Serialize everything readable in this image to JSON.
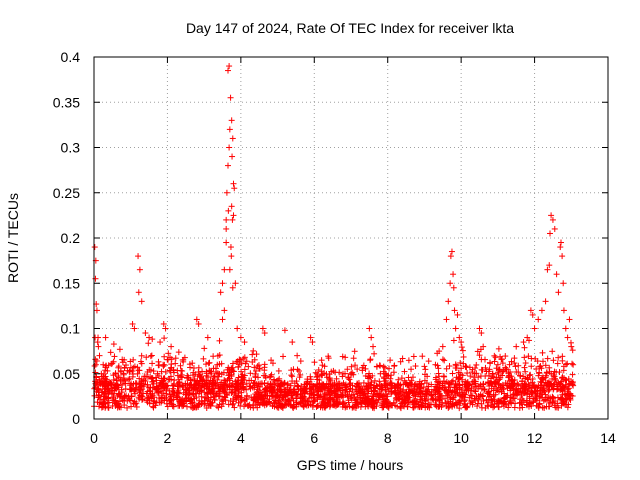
{
  "chart_data": {
    "type": "scatter",
    "title": "Day 147 of 2024, Rate Of TEC Index for receiver lkta",
    "xlabel": "GPS time / hours",
    "ylabel": "ROTI / TECUs",
    "xlim": [
      0,
      14
    ],
    "ylim": [
      0,
      0.4
    ],
    "xticks": [
      0,
      2,
      4,
      6,
      8,
      10,
      12,
      14
    ],
    "xtick_labels": [
      "0",
      "2",
      "4",
      "6",
      "8",
      "10",
      "12",
      "14"
    ],
    "yticks": [
      0,
      0.05,
      0.1,
      0.15,
      0.2,
      0.25,
      0.3,
      0.35,
      0.4
    ],
    "ytick_labels": [
      "0",
      "0.05",
      "0.1",
      "0.15",
      "0.2",
      "0.25",
      "0.3",
      "0.35",
      "0.4"
    ],
    "grid": true,
    "marker": "+",
    "color": "#ff0000",
    "series": [
      {
        "name": "ROTI",
        "points": [
          [
            0.02,
            0.19
          ],
          [
            0.05,
            0.175
          ],
          [
            0.04,
            0.155
          ],
          [
            0.06,
            0.127
          ],
          [
            0.08,
            0.12
          ],
          [
            0.03,
            0.09
          ],
          [
            0.1,
            0.085
          ],
          [
            0.12,
            0.08
          ],
          [
            0.05,
            0.06
          ],
          [
            0.15,
            0.07
          ],
          [
            0.2,
            0.05
          ],
          [
            0.25,
            0.06
          ],
          [
            0.3,
            0.045
          ],
          [
            1.2,
            0.18
          ],
          [
            1.25,
            0.165
          ],
          [
            1.22,
            0.14
          ],
          [
            1.3,
            0.13
          ],
          [
            1.05,
            0.105
          ],
          [
            1.1,
            0.1
          ],
          [
            1.4,
            0.095
          ],
          [
            1.5,
            0.09
          ],
          [
            1.8,
            0.085
          ],
          [
            1.9,
            0.105
          ],
          [
            1.95,
            0.1
          ],
          [
            2.1,
            0.08
          ],
          [
            2.8,
            0.11
          ],
          [
            2.85,
            0.105
          ],
          [
            3.1,
            0.09
          ],
          [
            3.45,
            0.14
          ],
          [
            3.5,
            0.15
          ],
          [
            3.55,
            0.165
          ],
          [
            3.6,
            0.195
          ],
          [
            3.6,
            0.22
          ],
          [
            3.62,
            0.25
          ],
          [
            3.65,
            0.28
          ],
          [
            3.68,
            0.3
          ],
          [
            3.7,
            0.32
          ],
          [
            3.72,
            0.355
          ],
          [
            3.65,
            0.385
          ],
          [
            3.68,
            0.39
          ],
          [
            3.75,
            0.33
          ],
          [
            3.78,
            0.31
          ],
          [
            3.76,
            0.29
          ],
          [
            3.8,
            0.26
          ],
          [
            3.82,
            0.255
          ],
          [
            3.75,
            0.235
          ],
          [
            3.77,
            0.22
          ],
          [
            3.8,
            0.225
          ],
          [
            3.73,
            0.19
          ],
          [
            3.74,
            0.18
          ],
          [
            3.7,
            0.165
          ],
          [
            3.85,
            0.15
          ],
          [
            3.78,
            0.145
          ],
          [
            3.66,
            0.23
          ],
          [
            3.6,
            0.21
          ],
          [
            3.55,
            0.12
          ],
          [
            3.5,
            0.11
          ],
          [
            3.9,
            0.1
          ],
          [
            4.0,
            0.09
          ],
          [
            4.1,
            0.085
          ],
          [
            4.6,
            0.1
          ],
          [
            4.65,
            0.095
          ],
          [
            5.2,
            0.098
          ],
          [
            5.4,
            0.085
          ],
          [
            5.9,
            0.09
          ],
          [
            5.95,
            0.085
          ],
          [
            6.2,
            0.065
          ],
          [
            6.9,
            0.055
          ],
          [
            7.0,
            0.05
          ],
          [
            7.5,
            0.1
          ],
          [
            7.55,
            0.09
          ],
          [
            7.6,
            0.08
          ],
          [
            7.52,
            0.065
          ],
          [
            7.8,
            0.05
          ],
          [
            7.9,
            0.045
          ],
          [
            8.5,
            0.04
          ],
          [
            9.3,
            0.06
          ],
          [
            9.4,
            0.075
          ],
          [
            9.5,
            0.08
          ],
          [
            9.6,
            0.11
          ],
          [
            9.65,
            0.13
          ],
          [
            9.7,
            0.15
          ],
          [
            9.72,
            0.18
          ],
          [
            9.75,
            0.185
          ],
          [
            9.78,
            0.16
          ],
          [
            9.8,
            0.145
          ],
          [
            9.82,
            0.12
          ],
          [
            9.85,
            0.1
          ],
          [
            9.9,
            0.115
          ],
          [
            9.95,
            0.09
          ],
          [
            10.0,
            0.085
          ],
          [
            10.5,
            0.1
          ],
          [
            10.55,
            0.095
          ],
          [
            10.6,
            0.08
          ],
          [
            11.0,
            0.06
          ],
          [
            11.5,
            0.08
          ],
          [
            11.7,
            0.085
          ],
          [
            11.8,
            0.09
          ],
          [
            11.9,
            0.12
          ],
          [
            11.95,
            0.115
          ],
          [
            12.0,
            0.1
          ],
          [
            12.1,
            0.11
          ],
          [
            12.2,
            0.12
          ],
          [
            12.3,
            0.13
          ],
          [
            12.35,
            0.165
          ],
          [
            12.4,
            0.17
          ],
          [
            12.42,
            0.205
          ],
          [
            12.45,
            0.225
          ],
          [
            12.5,
            0.22
          ],
          [
            12.55,
            0.21
          ],
          [
            12.6,
            0.16
          ],
          [
            12.65,
            0.14
          ],
          [
            12.7,
            0.19
          ],
          [
            12.72,
            0.195
          ],
          [
            12.75,
            0.18
          ],
          [
            12.78,
            0.15
          ],
          [
            12.8,
            0.12
          ],
          [
            12.85,
            0.1
          ],
          [
            12.9,
            0.09
          ],
          [
            12.95,
            0.11
          ],
          [
            13.0,
            0.08
          ],
          [
            13.05,
            0.06
          ]
        ]
      }
    ]
  }
}
